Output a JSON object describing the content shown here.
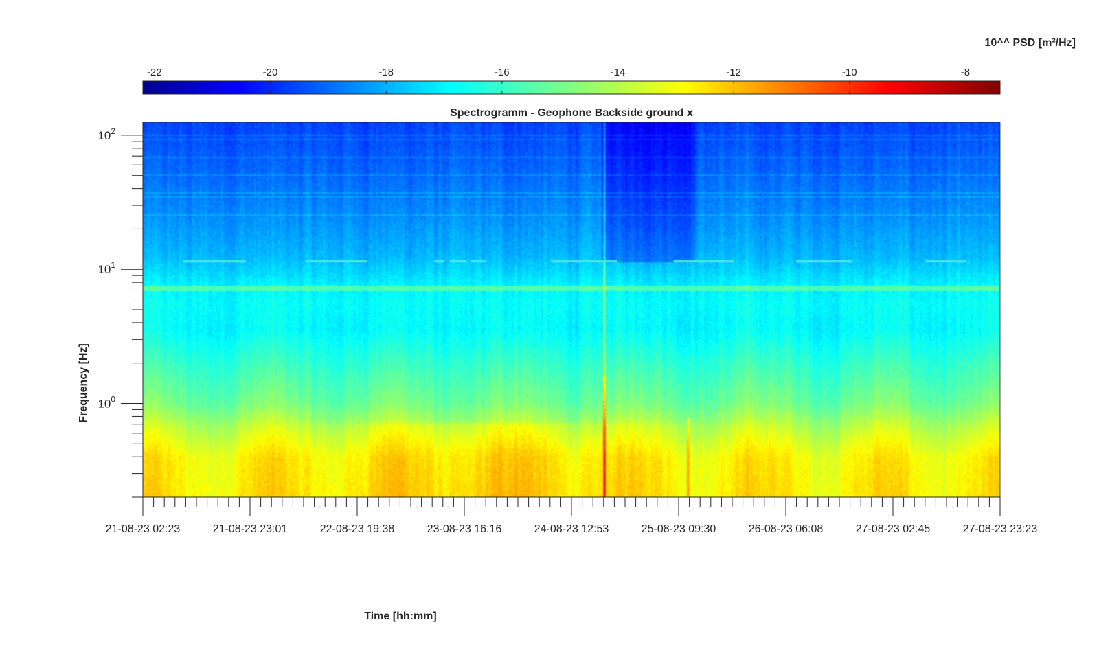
{
  "chart_data": {
    "type": "heatmap",
    "title": "Spectrogramm - Geophone Backside ground x",
    "xlabel": "Time [hh:mm]",
    "ylabel": "Frequency [Hz]",
    "colorbar_label": "10^^ PSD [m²/Hz]",
    "colorbar_ticks": [
      "-22",
      "-20",
      "-18",
      "-16",
      "-14",
      "-12",
      "-10",
      "-8"
    ],
    "colorbar_tick_values": [
      -22,
      -20,
      -18,
      -16,
      -14,
      -12,
      -10,
      -8
    ],
    "color_range": [
      -22.2,
      -7.4
    ],
    "colormap": "jet",
    "colorbar_placement": "top",
    "x_tick_labels": [
      "21-08-23 02:23",
      "21-08-23 23:01",
      "22-08-23 19:38",
      "23-08-23 16:16",
      "24-08-23 12:53",
      "25-08-23 09:30",
      "26-08-23 06:08",
      "27-08-23 02:45",
      "27-08-23 23:23"
    ],
    "y_scale": "log",
    "y_tick_bases": [
      "10",
      "10",
      "10"
    ],
    "y_tick_exponents": [
      "0",
      "1",
      "2"
    ],
    "y_tick_values": [
      1,
      10,
      100
    ],
    "ylim": [
      0.2,
      125
    ],
    "grid": false
  }
}
